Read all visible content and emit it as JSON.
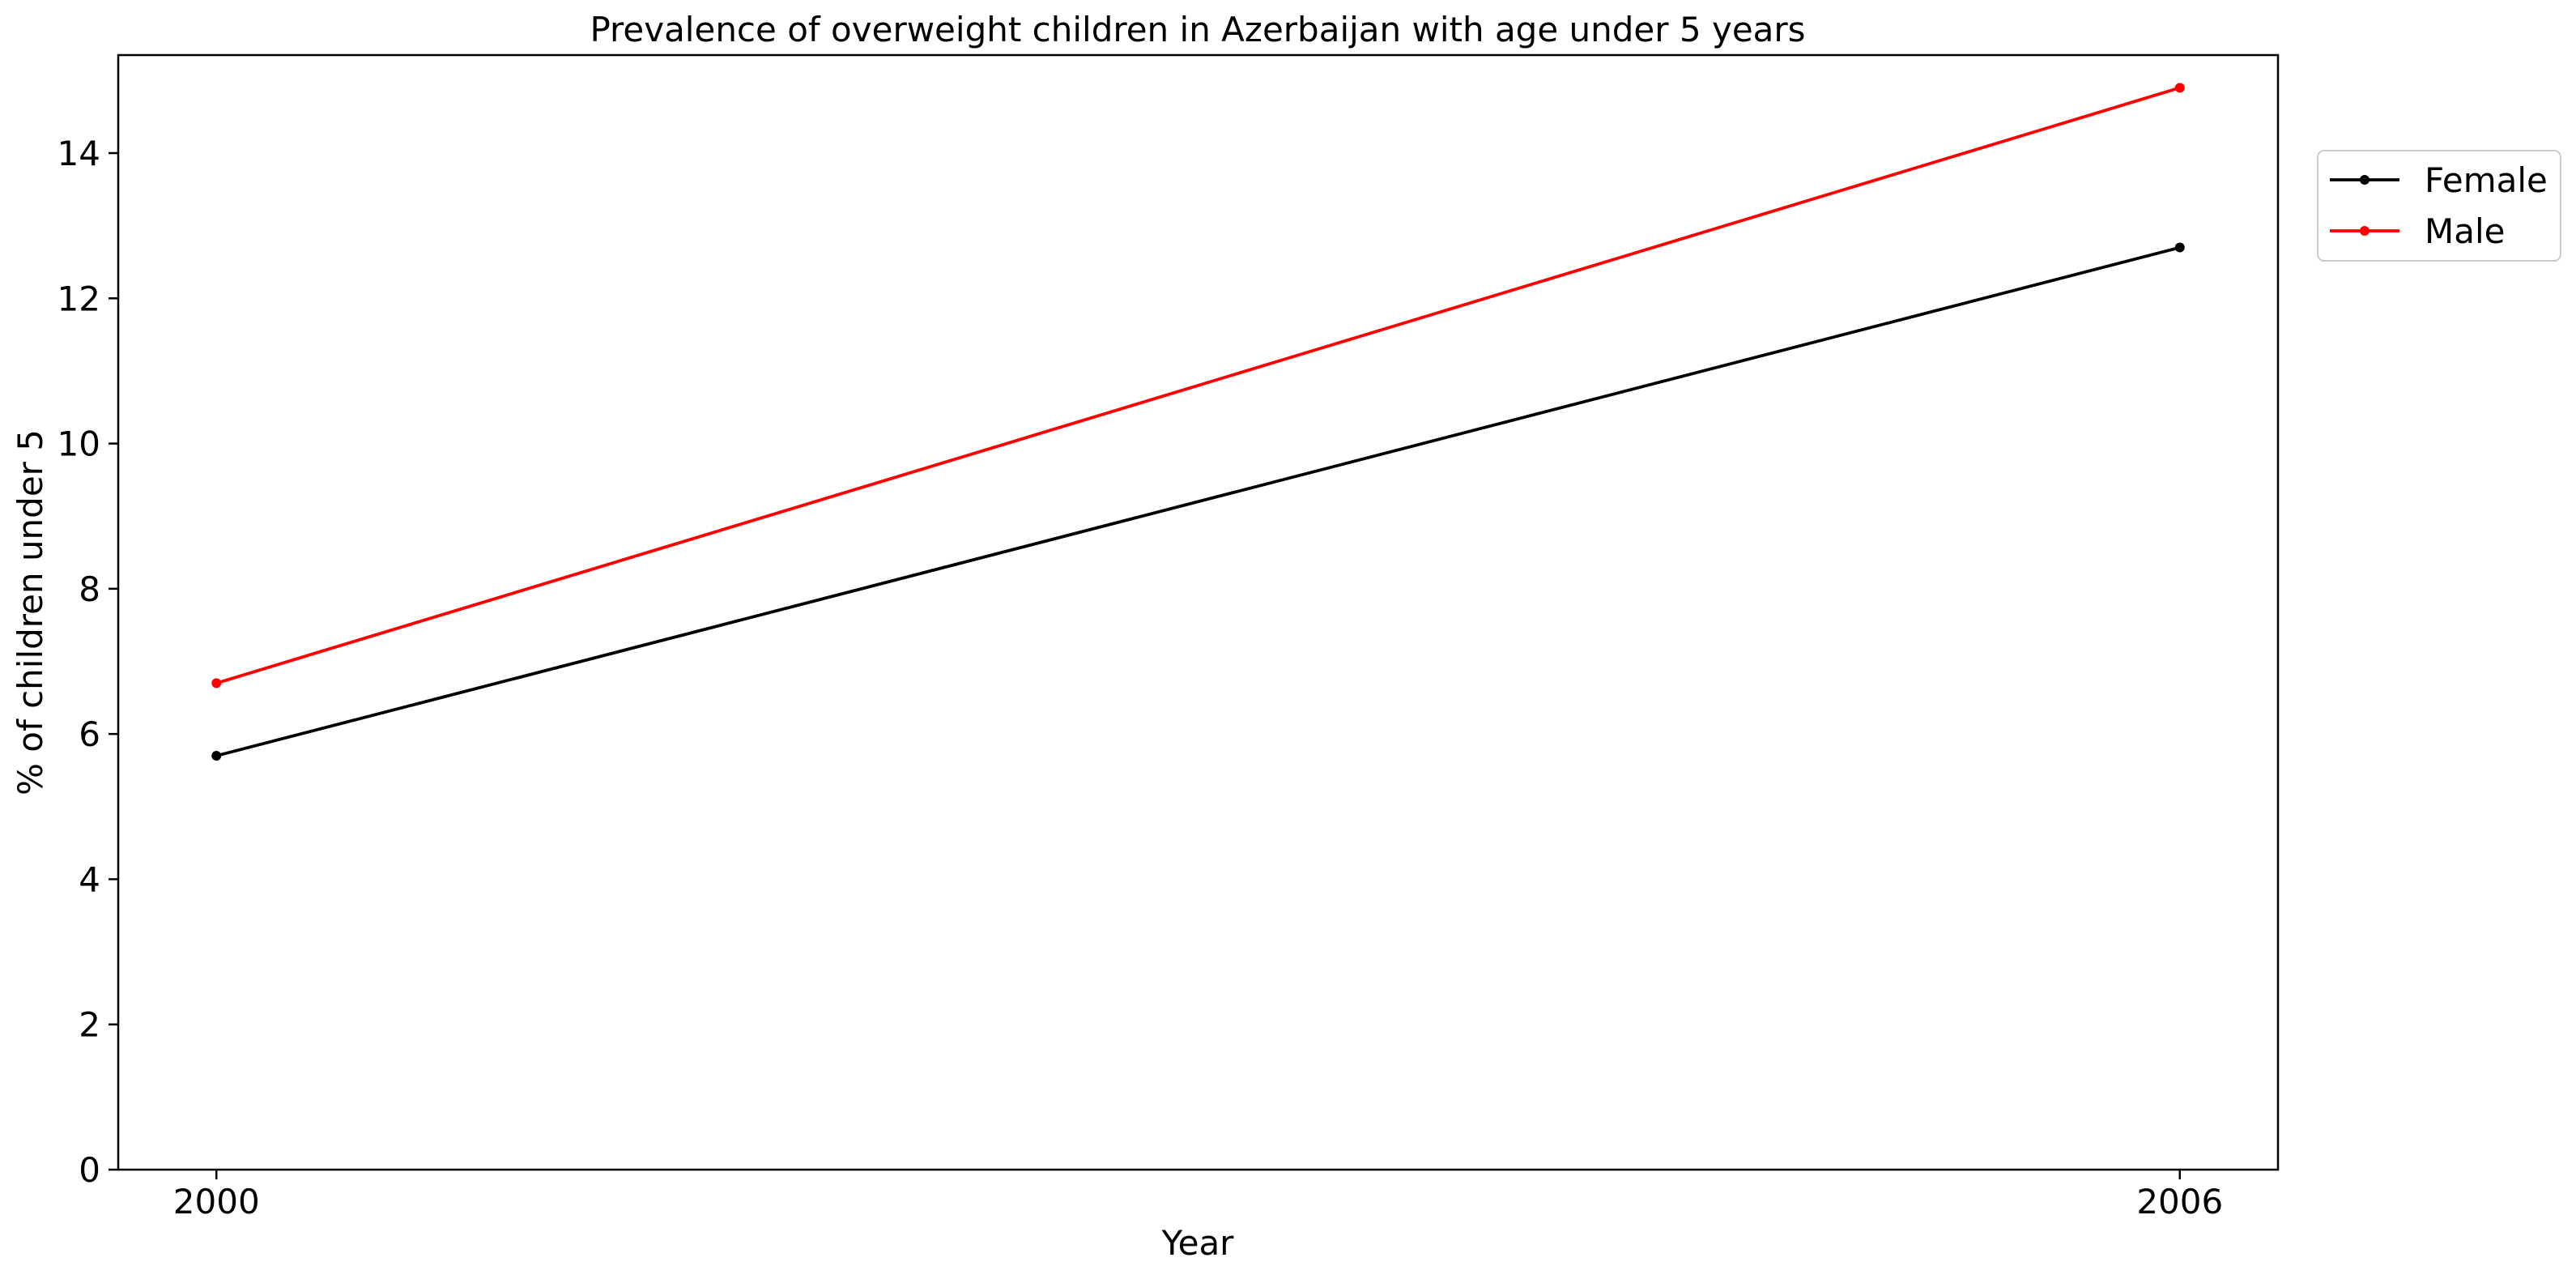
{
  "chart_data": {
    "type": "line",
    "title": "Prevalence of overweight children in Azerbaijan with age under 5 years",
    "xlabel": "Year",
    "ylabel": "% of children under 5",
    "x": [
      2000,
      2006
    ],
    "x_tick_labels": [
      "2000",
      "2006"
    ],
    "xlim": [
      1999.7,
      2006.3
    ],
    "ylim": [
      0,
      15.35
    ],
    "y_ticks": [
      0,
      2,
      4,
      6,
      8,
      10,
      12,
      14
    ],
    "y_tick_labels": [
      "0",
      "2",
      "4",
      "6",
      "8",
      "10",
      "12",
      "14"
    ],
    "grid": false,
    "legend_position": "outside right, top",
    "series": [
      {
        "name": "Female",
        "color": "#000000",
        "marker": "circle",
        "values": [
          5.7,
          12.7
        ]
      },
      {
        "name": "Male",
        "color": "#ff0000",
        "marker": "circle",
        "values": [
          6.7,
          14.9
        ]
      }
    ]
  }
}
